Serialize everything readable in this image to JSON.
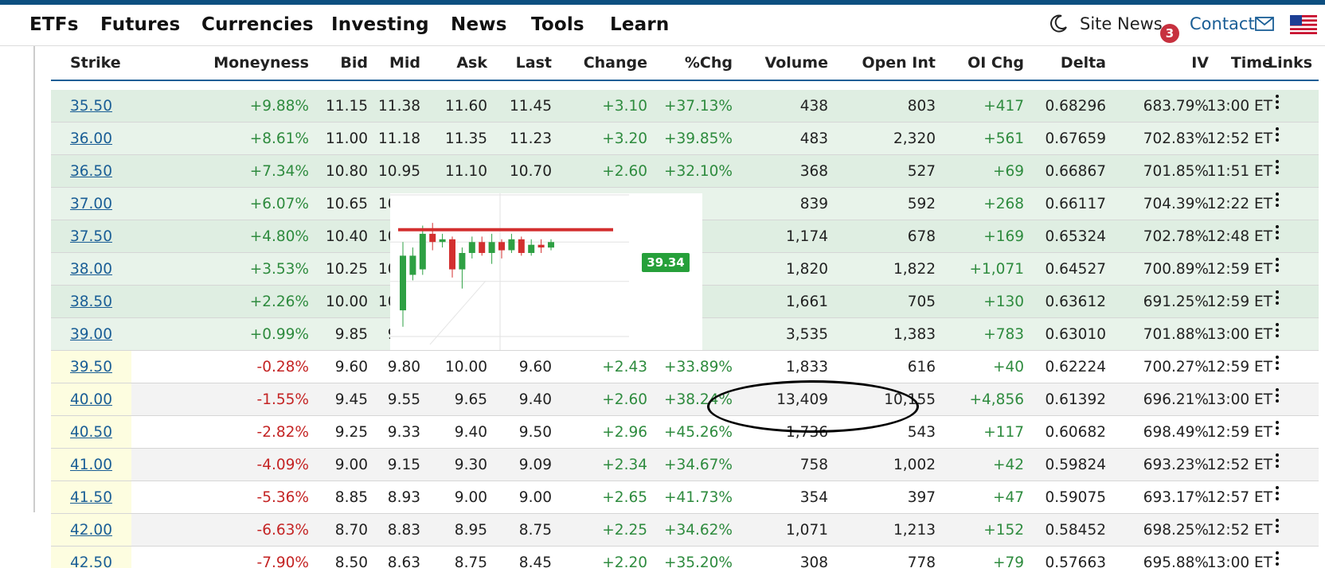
{
  "nav": {
    "items": [
      "ETFs",
      "Futures",
      "Currencies",
      "Investing",
      "News",
      "Tools",
      "Learn"
    ],
    "site_news": "Site News",
    "badge_count": "3",
    "contact": "Contact"
  },
  "table": {
    "headers": [
      "Strike",
      "Moneyness",
      "Bid",
      "Mid",
      "Ask",
      "Last",
      "Change",
      "%Chg",
      "Volume",
      "Open Int",
      "OI Chg",
      "Delta",
      "IV",
      "Time",
      "Links"
    ],
    "rows": [
      {
        "strike": "35.50",
        "moneyness": "+9.88%",
        "bid": "11.15",
        "mid": "11.38",
        "ask": "11.60",
        "last": "11.45",
        "change": "+3.10",
        "pchg": "+37.13%",
        "volume": "438",
        "oi": "803",
        "oichg": "+417",
        "delta": "0.68296",
        "iv": "683.79%",
        "time": "13:00 ET"
      },
      {
        "strike": "36.00",
        "moneyness": "+8.61%",
        "bid": "11.00",
        "mid": "11.18",
        "ask": "11.35",
        "last": "11.23",
        "change": "+3.20",
        "pchg": "+39.85%",
        "volume": "483",
        "oi": "2,320",
        "oichg": "+561",
        "delta": "0.67659",
        "iv": "702.83%",
        "time": "12:52 ET"
      },
      {
        "strike": "36.50",
        "moneyness": "+7.34%",
        "bid": "10.80",
        "mid": "10.95",
        "ask": "11.10",
        "last": "10.70",
        "change": "+2.60",
        "pchg": "+32.10%",
        "volume": "368",
        "oi": "527",
        "oichg": "+69",
        "delta": "0.66867",
        "iv": "701.85%",
        "time": "11:51 ET"
      },
      {
        "strike": "37.00",
        "moneyness": "+6.07%",
        "bid": "10.65",
        "mid": "10.78",
        "ask": "",
        "last": "",
        "change": "",
        "pchg": "",
        "volume": "839",
        "oi": "592",
        "oichg": "+268",
        "delta": "0.66117",
        "iv": "704.39%",
        "time": "12:22 ET"
      },
      {
        "strike": "37.50",
        "moneyness": "+4.80%",
        "bid": "10.40",
        "mid": "10.65",
        "ask": "",
        "last": "",
        "change": "",
        "pchg": "",
        "volume": "1,174",
        "oi": "678",
        "oichg": "+169",
        "delta": "0.65324",
        "iv": "702.78%",
        "time": "12:48 ET"
      },
      {
        "strike": "38.00",
        "moneyness": "+3.53%",
        "bid": "10.25",
        "mid": "10.33",
        "ask": "",
        "last": "",
        "change": "",
        "pchg": "",
        "volume": "1,820",
        "oi": "1,822",
        "oichg": "+1,071",
        "delta": "0.64527",
        "iv": "700.89%",
        "time": "12:59 ET"
      },
      {
        "strike": "38.50",
        "moneyness": "+2.26%",
        "bid": "10.00",
        "mid": "10.15",
        "ask": "",
        "last": "",
        "change": "",
        "pchg": "",
        "volume": "1,661",
        "oi": "705",
        "oichg": "+130",
        "delta": "0.63612",
        "iv": "691.25%",
        "time": "12:59 ET"
      },
      {
        "strike": "39.00",
        "moneyness": "+0.99%",
        "bid": "9.85",
        "mid": "9.93",
        "ask": "",
        "last": "",
        "change": "",
        "pchg": "",
        "volume": "3,535",
        "oi": "1,383",
        "oichg": "+783",
        "delta": "0.63010",
        "iv": "701.88%",
        "time": "13:00 ET"
      },
      {
        "strike": "39.50",
        "moneyness": "-0.28%",
        "bid": "9.60",
        "mid": "9.80",
        "ask": "10.00",
        "last": "9.60",
        "change": "+2.43",
        "pchg": "+33.89%",
        "volume": "1,833",
        "oi": "616",
        "oichg": "+40",
        "delta": "0.62224",
        "iv": "700.27%",
        "time": "12:59 ET"
      },
      {
        "strike": "40.00",
        "moneyness": "-1.55%",
        "bid": "9.45",
        "mid": "9.55",
        "ask": "9.65",
        "last": "9.40",
        "change": "+2.60",
        "pchg": "+38.24%",
        "volume": "13,409",
        "oi": "10,155",
        "oichg": "+4,856",
        "delta": "0.61392",
        "iv": "696.21%",
        "time": "13:00 ET"
      },
      {
        "strike": "40.50",
        "moneyness": "-2.82%",
        "bid": "9.25",
        "mid": "9.33",
        "ask": "9.40",
        "last": "9.50",
        "change": "+2.96",
        "pchg": "+45.26%",
        "volume": "1,736",
        "oi": "543",
        "oichg": "+117",
        "delta": "0.60682",
        "iv": "698.49%",
        "time": "12:59 ET"
      },
      {
        "strike": "41.00",
        "moneyness": "-4.09%",
        "bid": "9.00",
        "mid": "9.15",
        "ask": "9.30",
        "last": "9.09",
        "change": "+2.34",
        "pchg": "+34.67%",
        "volume": "758",
        "oi": "1,002",
        "oichg": "+42",
        "delta": "0.59824",
        "iv": "693.23%",
        "time": "12:52 ET"
      },
      {
        "strike": "41.50",
        "moneyness": "-5.36%",
        "bid": "8.85",
        "mid": "8.93",
        "ask": "9.00",
        "last": "9.00",
        "change": "+2.65",
        "pchg": "+41.73%",
        "volume": "354",
        "oi": "397",
        "oichg": "+47",
        "delta": "0.59075",
        "iv": "693.17%",
        "time": "12:57 ET"
      },
      {
        "strike": "42.00",
        "moneyness": "-6.63%",
        "bid": "8.70",
        "mid": "8.83",
        "ask": "8.95",
        "last": "8.75",
        "change": "+2.25",
        "pchg": "+34.62%",
        "volume": "1,071",
        "oi": "1,213",
        "oichg": "+152",
        "delta": "0.58452",
        "iv": "698.25%",
        "time": "12:52 ET"
      },
      {
        "strike": "42.50",
        "moneyness": "-7.90%",
        "bid": "8.50",
        "mid": "8.63",
        "ask": "8.75",
        "last": "8.45",
        "change": "+2.20",
        "pchg": "+35.20%",
        "volume": "308",
        "oi": "778",
        "oichg": "+79",
        "delta": "0.57663",
        "iv": "695.88%",
        "time": "13:00 ET"
      }
    ]
  },
  "popup": {
    "price_label": "39.34",
    "candles": [
      {
        "o": 36.9,
        "c": 38.9,
        "h": 39.4,
        "l": 36.3
      },
      {
        "o": 38.2,
        "c": 38.9,
        "h": 39.2,
        "l": 38.0
      },
      {
        "o": 38.4,
        "c": 39.7,
        "h": 40.0,
        "l": 38.2
      },
      {
        "o": 39.7,
        "c": 39.4,
        "h": 40.1,
        "l": 39.1
      },
      {
        "o": 39.4,
        "c": 39.5,
        "h": 39.7,
        "l": 39.2
      },
      {
        "o": 39.5,
        "c": 38.4,
        "h": 39.6,
        "l": 38.1
      },
      {
        "o": 38.4,
        "c": 39.0,
        "h": 39.2,
        "l": 37.7
      },
      {
        "o": 39.0,
        "c": 39.4,
        "h": 39.6,
        "l": 38.8
      },
      {
        "o": 39.4,
        "c": 39.0,
        "h": 39.6,
        "l": 38.9
      },
      {
        "o": 39.0,
        "c": 39.4,
        "h": 39.7,
        "l": 38.6
      },
      {
        "o": 39.4,
        "c": 39.1,
        "h": 39.5,
        "l": 38.8
      },
      {
        "o": 39.1,
        "c": 39.5,
        "h": 39.7,
        "l": 39.0
      },
      {
        "o": 39.5,
        "c": 39.0,
        "h": 39.6,
        "l": 38.9
      },
      {
        "o": 39.0,
        "c": 39.3,
        "h": 39.5,
        "l": 38.9
      },
      {
        "o": 39.3,
        "c": 39.2,
        "h": 39.5,
        "l": 39.0
      },
      {
        "o": 39.2,
        "c": 39.4,
        "h": 39.5,
        "l": 39.1
      }
    ],
    "reference_level": 39.85,
    "colors": {
      "up": "#2ea043",
      "down": "#d32f2f",
      "level": "#d32f2f"
    }
  },
  "colors": {
    "link": "#1a5e96",
    "positive": "#2e8b3e",
    "negative": "#c42424"
  }
}
